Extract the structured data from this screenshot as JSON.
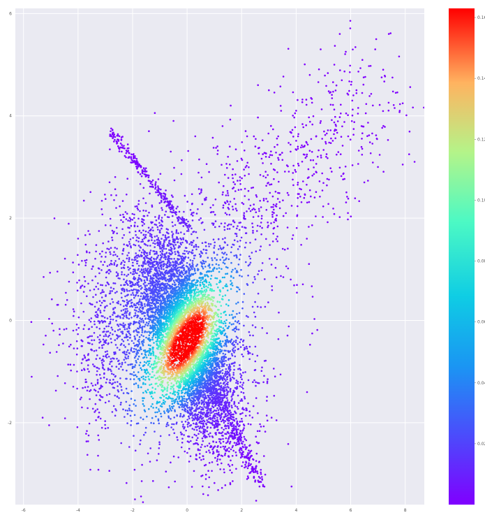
{
  "chart_data": {
    "type": "scatter",
    "title": "",
    "xlabel": "",
    "ylabel": "",
    "xlim": [
      -6.3,
      8.7
    ],
    "ylim": [
      -3.6,
      6.1
    ],
    "xticks": [
      "-6",
      "-4",
      "-2",
      "0",
      "2",
      "4",
      "6",
      "8"
    ],
    "yticks": [
      "-2",
      "0",
      "2",
      "4",
      "6"
    ],
    "grid": true,
    "background": "#eaeaf2",
    "colormap": "rainbow",
    "colorbar": {
      "vmin": 0.0,
      "vmax": 0.163,
      "ticks": [
        "0.02",
        "0.04",
        "0.06",
        "0.08",
        "0.10",
        "0.12",
        "0.14",
        "0.16"
      ]
    },
    "density_core": {
      "center": [
        0.0,
        -0.4
      ],
      "spread": [
        0.65,
        0.75
      ],
      "correlation": -0.62,
      "peak_density": 0.16
    },
    "features": {
      "diagonal_streak": {
        "from": [
          -2.8,
          3.7
        ],
        "to": [
          0.2,
          1.7
        ]
      },
      "lower_tail": {
        "from": [
          0.9,
          -1.2
        ],
        "to": [
          2.7,
          -3.2
        ]
      },
      "upper_right_cloud": {
        "center": [
          2.7,
          2.7
        ],
        "extent": [
          7.5,
          5.6
        ]
      }
    },
    "sample_points": [
      [
        -5.7,
        -1.1
      ],
      [
        -5.3,
        -1.9
      ],
      [
        -4.9,
        -0.2
      ],
      [
        -4.4,
        0.4
      ],
      [
        -4.0,
        1.6
      ],
      [
        -3.6,
        -1.0
      ],
      [
        -3.1,
        -1.5
      ],
      [
        -2.9,
        -2.1
      ],
      [
        -2.6,
        2.2
      ],
      [
        -2.4,
        3.3
      ],
      [
        -1.8,
        2.9
      ],
      [
        -1.7,
        -1.9
      ],
      [
        -1.4,
        3.7
      ],
      [
        -0.6,
        3.3
      ],
      [
        -0.5,
        3.9
      ],
      [
        0.3,
        3.6
      ],
      [
        0.7,
        2.4
      ],
      [
        1.3,
        3.8
      ],
      [
        1.6,
        4.2
      ],
      [
        2.2,
        3.6
      ],
      [
        2.6,
        4.6
      ],
      [
        3.0,
        4.5
      ],
      [
        3.3,
        1.2
      ],
      [
        3.8,
        0.8
      ],
      [
        4.0,
        4.1
      ],
      [
        4.3,
        3.4
      ],
      [
        4.5,
        4.8
      ],
      [
        4.9,
        5.3
      ],
      [
        5.1,
        3.2
      ],
      [
        5.4,
        5.0
      ],
      [
        5.6,
        5.6
      ],
      [
        5.9,
        2.1
      ],
      [
        6.1,
        4.4
      ],
      [
        6.4,
        3.8
      ],
      [
        6.5,
        2.7
      ],
      [
        6.9,
        5.3
      ],
      [
        7.0,
        3.0
      ],
      [
        7.4,
        5.6
      ],
      [
        7.8,
        4.1
      ],
      [
        1.4,
        -2.6
      ],
      [
        1.8,
        -2.9
      ],
      [
        2.2,
        -3.1
      ],
      [
        2.6,
        -2.4
      ],
      [
        3.1,
        -1.9
      ],
      [
        4.4,
        -1.4
      ]
    ]
  }
}
